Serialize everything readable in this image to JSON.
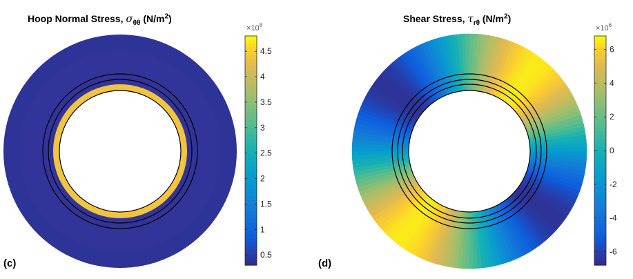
{
  "chart_data": [
    {
      "type": "heatmap",
      "panel_label": "(c)",
      "title_text": "Hoop Normal Stress, ",
      "title_symbol": "σ",
      "title_subscript": "θθ",
      "title_units_prefix": " (N/m",
      "title_units_power": "2",
      "title_units_suffix": ")",
      "colorbar": {
        "multiplier": "×10",
        "multiplier_power": "8",
        "range": [
          0.3,
          4.8
        ],
        "ticks": [
          0.5,
          1,
          1.5,
          2,
          2.5,
          3,
          3.5,
          4,
          4.5
        ],
        "tick_labels": [
          "0.5",
          "1",
          "1.5",
          "2",
          "2.5",
          "3",
          "3.5",
          "4",
          "4.5"
        ],
        "colormap": "parula"
      },
      "field": {
        "inner_ring_value": 4.4,
        "outer_region_value": 0.4
      }
    },
    {
      "type": "heatmap",
      "panel_label": "(d)",
      "title_text": "Shear Stress, ",
      "title_symbol": "τ",
      "title_subscript": "rθ",
      "title_units_prefix": " (N/m",
      "title_units_power": "2",
      "title_units_suffix": ")",
      "colorbar": {
        "multiplier": "×10",
        "multiplier_power": "6",
        "range": [
          -6.8,
          6.8
        ],
        "ticks": [
          -6,
          -4,
          -2,
          0,
          2,
          4,
          6
        ],
        "tick_labels": [
          "-6",
          "-4",
          "-2",
          "0",
          "2",
          "4",
          "6"
        ],
        "colormap": "parula"
      },
      "field": {
        "pattern": "sin(2θ)",
        "amplitude": 6.5
      }
    }
  ]
}
